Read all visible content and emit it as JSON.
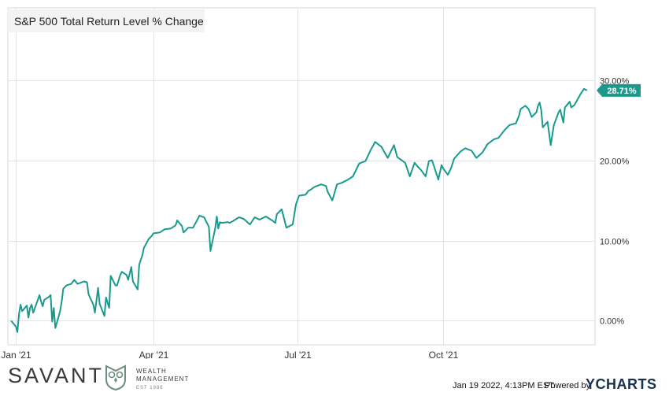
{
  "chart_data": {
    "type": "line",
    "title": "S&P 500 Total Return Level % Change",
    "series": [
      {
        "name": "S&P 500 Total Return Level % Change",
        "color": "#1a9a8c",
        "x": [
          "2021-01-01",
          "2021-01-04",
          "2021-01-05",
          "2021-01-06",
          "2021-01-07",
          "2021-01-08",
          "2021-01-11",
          "2021-01-12",
          "2021-01-13",
          "2021-01-14",
          "2021-01-15",
          "2021-01-19",
          "2021-01-20",
          "2021-01-21",
          "2021-01-22",
          "2021-01-25",
          "2021-01-26",
          "2021-01-27",
          "2021-01-28",
          "2021-01-29",
          "2021-02-01",
          "2021-02-02",
          "2021-02-03",
          "2021-02-05",
          "2021-02-08",
          "2021-02-10",
          "2021-02-12",
          "2021-02-16",
          "2021-02-18",
          "2021-02-19",
          "2021-02-22",
          "2021-02-23",
          "2021-02-25",
          "2021-02-26",
          "2021-03-01",
          "2021-03-02",
          "2021-03-04",
          "2021-03-05",
          "2021-03-08",
          "2021-03-09",
          "2021-03-11",
          "2021-03-12",
          "2021-03-15",
          "2021-03-16",
          "2021-03-18",
          "2021-03-19",
          "2021-03-22",
          "2021-03-23",
          "2021-03-25",
          "2021-03-26",
          "2021-03-29",
          "2021-03-31",
          "2021-04-01",
          "2021-04-05",
          "2021-04-08",
          "2021-04-12",
          "2021-04-15",
          "2021-04-16",
          "2021-04-19",
          "2021-04-20",
          "2021-04-23",
          "2021-04-26",
          "2021-04-29",
          "2021-04-30",
          "2021-05-03",
          "2021-05-06",
          "2021-05-07",
          "2021-05-10",
          "2021-05-11",
          "2021-05-12",
          "2021-05-13",
          "2021-05-14",
          "2021-05-18",
          "2021-05-19",
          "2021-05-21",
          "2021-05-25",
          "2021-05-28",
          "2021-06-01",
          "2021-06-04",
          "2021-06-07",
          "2021-06-11",
          "2021-06-15",
          "2021-06-17",
          "2021-06-18",
          "2021-06-21",
          "2021-06-24",
          "2021-06-28",
          "2021-06-30",
          "2021-07-02",
          "2021-07-06",
          "2021-07-08",
          "2021-07-09",
          "2021-07-12",
          "2021-07-16",
          "2021-07-19",
          "2021-07-20",
          "2021-07-23",
          "2021-07-26",
          "2021-07-29",
          "2021-08-02",
          "2021-08-05",
          "2021-08-09",
          "2021-08-13",
          "2021-08-16",
          "2021-08-18",
          "2021-08-19",
          "2021-08-23",
          "2021-08-27",
          "2021-08-31",
          "2021-09-02",
          "2021-09-07",
          "2021-09-10",
          "2021-09-13",
          "2021-09-15",
          "2021-09-17",
          "2021-09-20",
          "2021-09-22",
          "2021-09-24",
          "2021-09-28",
          "2021-09-30",
          "2021-10-01",
          "2021-10-04",
          "2021-10-06",
          "2021-10-08",
          "2021-10-12",
          "2021-10-15",
          "2021-10-19",
          "2021-10-22",
          "2021-10-26",
          "2021-10-29",
          "2021-11-02",
          "2021-11-05",
          "2021-11-09",
          "2021-11-12",
          "2021-11-16",
          "2021-11-18",
          "2021-11-19",
          "2021-11-22",
          "2021-11-24",
          "2021-11-26",
          "2021-11-29",
          "2021-11-30",
          "2021-12-01",
          "2021-12-02",
          "2021-12-03",
          "2021-12-06",
          "2021-12-08",
          "2021-12-10",
          "2021-12-13",
          "2021-12-14",
          "2021-12-16",
          "2021-12-17",
          "2021-12-20",
          "2021-12-21",
          "2021-12-23",
          "2021-12-27",
          "2021-12-29",
          "2021-12-31"
        ],
        "y": [
          0.0,
          -0.7,
          -1.4,
          0.8,
          2.0,
          1.2,
          1.9,
          0.4,
          1.6,
          2.0,
          1.0,
          3.2,
          2.4,
          1.8,
          2.6,
          3.0,
          3.2,
          -0.1,
          1.6,
          -0.9,
          1.2,
          2.4,
          4.0,
          4.4,
          4.6,
          5.1,
          4.6,
          4.9,
          4.8,
          3.3,
          2.0,
          1.0,
          4.1,
          2.1,
          0.6,
          2.9,
          1.6,
          5.6,
          4.4,
          4.4,
          5.7,
          6.1,
          5.7,
          5.1,
          6.7,
          4.9,
          3.9,
          7.0,
          8.2,
          9.1,
          10.2,
          10.6,
          10.9,
          11.0,
          11.4,
          11.5,
          11.9,
          12.5,
          11.8,
          11.0,
          11.6,
          11.6,
          12.7,
          13.1,
          12.9,
          11.7,
          8.7,
          11.5,
          13.0,
          11.5,
          12.3,
          12.2,
          12.3,
          12.2,
          12.4,
          12.9,
          12.7,
          12.0,
          12.9,
          12.6,
          13.0,
          12.5,
          12.2,
          13.3,
          13.9,
          11.6,
          12.0,
          14.5,
          15.6,
          15.7,
          16.2,
          16.3,
          16.7,
          17.0,
          16.8,
          16.1,
          15.0,
          17.0,
          17.2,
          17.6,
          18.0,
          19.6,
          19.9,
          21.2,
          21.9,
          22.3,
          21.7,
          20.3,
          21.9,
          20.4,
          19.7,
          18.0,
          19.7,
          19.2,
          18.8,
          18.0,
          19.9,
          20.0,
          17.6,
          19.4,
          19.0,
          18.2,
          19.0,
          20.2,
          21.1,
          21.5,
          21.2,
          20.3,
          21.0,
          22.0,
          22.6,
          22.8,
          23.8,
          24.4,
          24.6,
          25.6,
          26.4,
          26.8,
          26.4,
          25.4,
          26.0,
          26.8,
          27.2,
          26.3,
          24.1,
          24.8,
          21.9,
          24.4,
          26.0,
          26.3,
          24.7,
          26.6,
          27.3,
          26.6,
          26.9,
          28.3,
          28.9,
          28.71
        ]
      }
    ],
    "last_value_label": "28.71%",
    "y_ticks": [
      0,
      10,
      20,
      30
    ],
    "y_tick_labels": [
      "0.00%",
      "10.00%",
      "20.00%",
      "30.00%"
    ],
    "x_tick_labels": [
      "Jan '21",
      "Apr '21",
      "Jul '21",
      "Oct '21"
    ],
    "x_ticks": [
      "2021-01-04",
      "2021-04-01",
      "2021-07-01",
      "2021-10-01"
    ],
    "ylim": [
      -3,
      39
    ],
    "xlim": [
      "2020-12-30",
      "2022-01-05"
    ],
    "grid": true,
    "y_axis_position": "right"
  },
  "footer": {
    "brand": "SAVANT",
    "brand_sub_1": "WEALTH",
    "brand_sub_2": "MANAGEMENT",
    "brand_est": "EST 1986",
    "timestamp": "Jan 19 2022, 4:13PM EST.",
    "powered_by": "Powered by",
    "ycharts": "YCHARTS"
  }
}
